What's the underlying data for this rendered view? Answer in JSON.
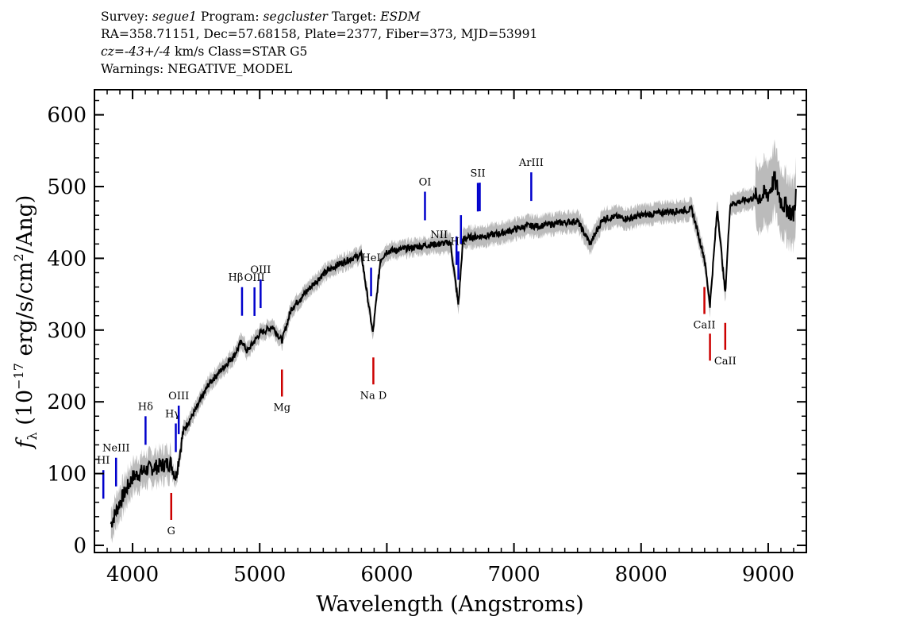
{
  "header": {
    "line1": {
      "survey_label": "Survey:",
      "survey": "segue1",
      "program_label": "Program:",
      "program": "segcluster",
      "target_label": "Target:",
      "target": "ESDM"
    },
    "line2": "RA=358.71151, Dec=57.68158, Plate=2377, Fiber=373, MJD=53991",
    "line3": {
      "cz_label": "cz=",
      "cz_value": "-43+/-4",
      "cz_units": "km/s Class=STAR G5"
    },
    "line4": "Warnings: NEGATIVE_MODEL"
  },
  "chart_data": {
    "type": "line",
    "title": "",
    "xlabel": "Wavelength (Angstroms)",
    "ylabel": "fλ (10^-17 erg/s/cm^2/Ang)",
    "ylabel_parts": {
      "f": "f",
      "lambda": "λ",
      "open": " (10",
      "exp1": "−17",
      "mid": " erg/s/cm",
      "exp2": "2",
      "close": "/Ang)"
    },
    "xlim": [
      3700,
      9300
    ],
    "ylim": [
      -10,
      635
    ],
    "x_ticks": [
      "4000",
      "5000",
      "6000",
      "7000",
      "8000",
      "9000"
    ],
    "y_ticks": [
      "0",
      "100",
      "200",
      "300",
      "400",
      "500",
      "600"
    ],
    "x_tick_values": [
      4000,
      5000,
      6000,
      7000,
      8000,
      9000
    ],
    "y_tick_values": [
      0,
      100,
      200,
      300,
      400,
      500,
      600
    ],
    "series": [
      {
        "name": "flux",
        "color": "#000000",
        "x": [
          3830,
          3900,
          4000,
          4100,
          4200,
          4300,
          4340,
          4400,
          4500,
          4600,
          4700,
          4800,
          4861,
          4900,
          5000,
          5100,
          5175,
          5250,
          5300,
          5400,
          5500,
          5600,
          5700,
          5800,
          5890,
          5950,
          6000,
          6100,
          6200,
          6300,
          6400,
          6500,
          6563,
          6600,
          6700,
          6800,
          6900,
          7000,
          7100,
          7200,
          7300,
          7400,
          7500,
          7600,
          7700,
          7800,
          7900,
          8000,
          8100,
          8200,
          8300,
          8400,
          8498,
          8542,
          8600,
          8662,
          8700,
          8800,
          8900,
          9000,
          9050,
          9100,
          9150,
          9200,
          9220
        ],
        "y": [
          30,
          60,
          95,
          105,
          110,
          115,
          95,
          160,
          190,
          225,
          245,
          265,
          285,
          270,
          295,
          305,
          285,
          330,
          340,
          360,
          378,
          390,
          398,
          405,
          295,
          398,
          410,
          412,
          415,
          418,
          420,
          422,
          335,
          428,
          430,
          432,
          435,
          440,
          445,
          445,
          448,
          450,
          452,
          420,
          455,
          458,
          455,
          460,
          462,
          465,
          466,
          468,
          400,
          335,
          470,
          350,
          475,
          480,
          485,
          490,
          510,
          480,
          470,
          460,
          495
        ]
      },
      {
        "name": "model_error_band",
        "color": "#bbbbbb"
      }
    ],
    "annotations": [
      {
        "label": "HI",
        "x": 3770,
        "color": "#0000cc",
        "position": "above"
      },
      {
        "label": "NeIII",
        "x": 3870,
        "color": "#0000cc",
        "position": "above"
      },
      {
        "label": "Hδ",
        "x": 4102,
        "color": "#0000cc",
        "position": "above"
      },
      {
        "label": "Hγ",
        "x": 4340,
        "color": "#0000cc",
        "position": "above"
      },
      {
        "label": "OIII",
        "x": 4363,
        "color": "#0000cc",
        "position": "above"
      },
      {
        "label": "Hβ",
        "x": 4861,
        "color": "#0000cc",
        "position": "above"
      },
      {
        "label": "OIII",
        "x": 4959,
        "color": "#0000cc",
        "position": "above"
      },
      {
        "label": "OIII",
        "x": 5007,
        "color": "#0000cc",
        "position": "above"
      },
      {
        "label": "HeI",
        "x": 5876,
        "color": "#0000cc",
        "position": "above"
      },
      {
        "label": "OI",
        "x": 6300,
        "color": "#0000cc",
        "position": "above"
      },
      {
        "label": "NII",
        "x": 6548,
        "color": "#0000cc",
        "position": "above"
      },
      {
        "label": "Hα",
        "x": 6563,
        "color": "#0000cc",
        "position": "above"
      },
      {
        "label": "NII",
        "x": 6583,
        "color": "#0000cc",
        "position": "above"
      },
      {
        "label": "SII",
        "x": 6716,
        "color": "#0000cc",
        "position": "above"
      },
      {
        "label": "SII",
        "x": 6731,
        "color": "#0000cc",
        "position": "above"
      },
      {
        "label": "ArIII",
        "x": 7136,
        "color": "#0000cc",
        "position": "above"
      },
      {
        "label": "G",
        "x": 4304,
        "color": "#cc0000",
        "position": "below"
      },
      {
        "label": "Mg",
        "x": 5175,
        "color": "#cc0000",
        "position": "below"
      },
      {
        "label": "Na D",
        "x": 5894,
        "color": "#cc0000",
        "position": "below"
      },
      {
        "label": "CaII",
        "x": 8498,
        "color": "#cc0000",
        "position": "below"
      },
      {
        "label": "CaII",
        "x": 8542,
        "color": "#cc0000",
        "position": "below"
      },
      {
        "label": "CaII",
        "x": 8662,
        "color": "#cc0000",
        "position": "below"
      }
    ]
  }
}
